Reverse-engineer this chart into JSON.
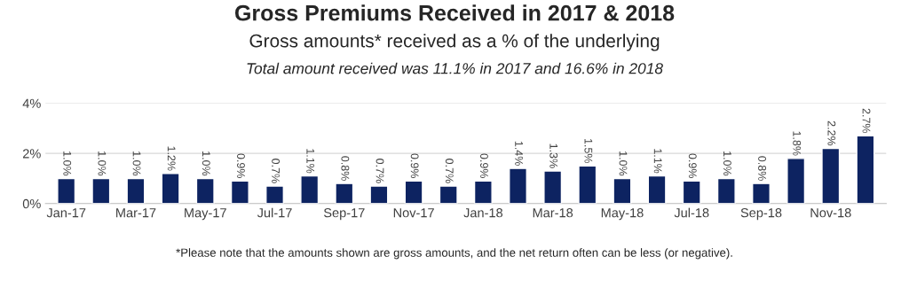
{
  "chart_data": {
    "type": "bar",
    "title": "Gross Premiums Received in 2017 & 2018",
    "subtitle": "Gross amounts* received as a % of the underlying",
    "annotations": [
      "Total amount received was 11.1% in 2017 and 16.6% in 2018",
      "*Please note that the amounts shown are gross amounts, and the net return often can be less (or negative)."
    ],
    "categories": [
      "Jan-17",
      null,
      "Mar-17",
      null,
      "May-17",
      null,
      "Jul-17",
      null,
      "Sep-17",
      null,
      "Nov-17",
      null,
      "Jan-18",
      null,
      "Mar-18",
      null,
      "May-18",
      null,
      "Jul-18",
      null,
      "Sep-18",
      null,
      "Nov-18",
      null
    ],
    "values": [
      1.0,
      1.0,
      1.0,
      1.2,
      1.0,
      0.9,
      0.7,
      1.1,
      0.8,
      0.7,
      0.9,
      0.7,
      0.9,
      1.4,
      1.3,
      1.5,
      1.0,
      1.1,
      0.9,
      1.0,
      0.8,
      1.8,
      2.2,
      2.7
    ],
    "value_labels": [
      "1.0%",
      "1.0%",
      "1.0%",
      "1.2%",
      "1.0%",
      "0.9%",
      "0.7%",
      "1.1%",
      "0.8%",
      "0.7%",
      "0.9%",
      "0.7%",
      "0.9%",
      "1.4%",
      "1.3%",
      "1.5%",
      "1.0%",
      "1.1%",
      "0.9%",
      "1.0%",
      "0.8%",
      "1.8%",
      "2.2%",
      "2.7%"
    ],
    "color": "#0d2361",
    "ylim": [
      0,
      4
    ],
    "yticks": [
      {
        "value": 0,
        "label": "0%"
      },
      {
        "value": 2,
        "label": "2%"
      },
      {
        "value": 4,
        "label": "4%"
      }
    ],
    "grid": "y"
  }
}
